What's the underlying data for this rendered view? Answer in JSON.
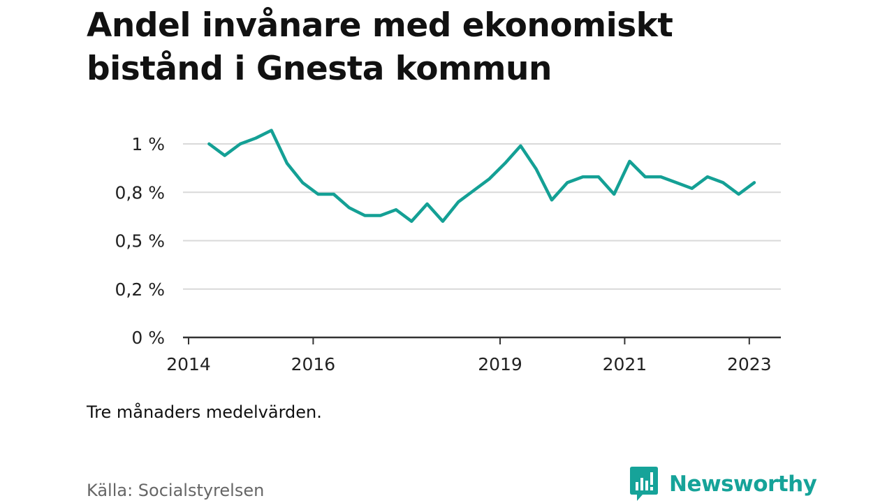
{
  "title": "Andel invånare med ekonomiskt bistånd i Gnesta kommun",
  "note": "Tre månaders medelvärden.",
  "source": "Källa: Socialstyrelsen",
  "brand": "Newsworthy",
  "colors": {
    "line": "#14a095",
    "grid": "#d9d9d9",
    "axis": "#333333",
    "text": "#222222",
    "brand": "#16a399"
  },
  "chart_data": {
    "type": "line",
    "title": "Andel invånare med ekonomiskt bistånd i Gnesta kommun",
    "xlabel": "",
    "ylabel": "",
    "ylim": [
      0,
      1.0
    ],
    "xlim": [
      2014,
      2023.5
    ],
    "grid": true,
    "y_ticks": [
      {
        "value": 0,
        "label": "0 %"
      },
      {
        "value": 0.25,
        "label": "0,2 %"
      },
      {
        "value": 0.5,
        "label": "0,5 %"
      },
      {
        "value": 0.75,
        "label": "0,8 %"
      },
      {
        "value": 1.0,
        "label": "1 %"
      }
    ],
    "x_ticks": [
      {
        "value": 2014,
        "label": "2014"
      },
      {
        "value": 2016,
        "label": "2016"
      },
      {
        "value": 2019,
        "label": "2019"
      },
      {
        "value": 2021,
        "label": "2021"
      },
      {
        "value": 2023,
        "label": "2023"
      }
    ],
    "series": [
      {
        "x": [
          2014.33,
          2014.58,
          2014.83,
          2015.08,
          2015.33,
          2015.58,
          2015.83,
          2016.08,
          2016.33,
          2016.58,
          2016.83,
          2017.08,
          2017.33,
          2017.58,
          2017.83,
          2018.08,
          2018.33,
          2018.58,
          2018.83,
          2019.08,
          2019.33,
          2019.58,
          2019.83,
          2020.08,
          2020.33,
          2020.58,
          2020.83,
          2021.08,
          2021.33,
          2021.58,
          2021.83,
          2022.08,
          2022.33,
          2022.58,
          2022.83,
          2023.08
        ],
        "values": [
          1.0,
          0.94,
          1.0,
          1.03,
          1.07,
          0.9,
          0.8,
          0.74,
          0.74,
          0.67,
          0.63,
          0.63,
          0.66,
          0.6,
          0.69,
          0.6,
          0.7,
          0.76,
          0.82,
          0.9,
          0.99,
          0.87,
          0.71,
          0.8,
          0.83,
          0.83,
          0.74,
          0.91,
          0.83,
          0.83,
          0.8,
          0.77,
          0.83,
          0.8,
          0.74,
          0.8
        ]
      }
    ]
  }
}
